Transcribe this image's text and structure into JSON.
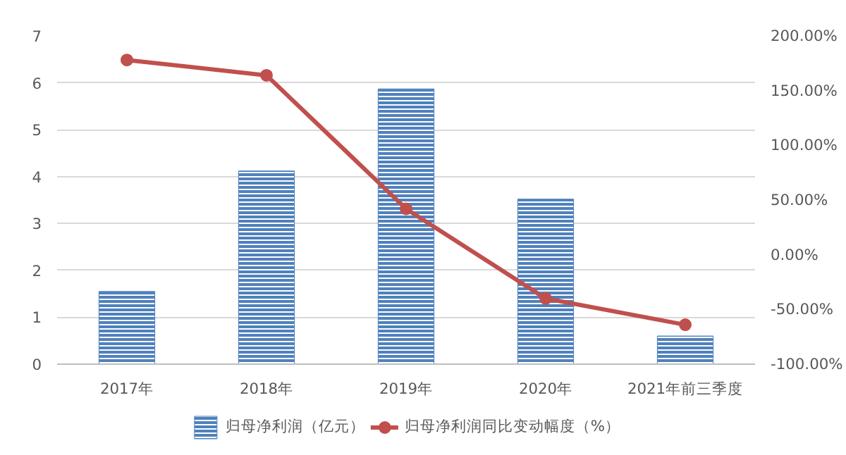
{
  "chart_data": {
    "type": "bar",
    "categories": [
      "2017年",
      "2018年",
      "2019年",
      "2020年",
      "2021年前三季度"
    ],
    "series": [
      {
        "name": "归母净利润（亿元）",
        "color": "#4f81bd",
        "values": [
          1.55,
          4.12,
          5.87,
          3.52,
          0.6
        ]
      },
      {
        "name": "归母净利润同比变动幅度（%）",
        "type": "line",
        "axis": "y2",
        "color": "#c0504d",
        "marker": "circle",
        "values": [
          178,
          164,
          42,
          -40,
          -64
        ]
      }
    ],
    "ylim": [
      0,
      7
    ],
    "yticks": [
      0,
      1,
      2,
      3,
      4,
      5,
      6,
      7
    ],
    "y2lim": [
      -100,
      200
    ],
    "y2ticks": [
      {
        "value": -100,
        "label": "-100.00%"
      },
      {
        "value": -50,
        "label": "-50.00%"
      },
      {
        "value": 0,
        "label": "0.00%"
      },
      {
        "value": 50,
        "label": "50.00%"
      },
      {
        "value": 100,
        "label": "100.00%"
      },
      {
        "value": 150,
        "label": "150.00%"
      },
      {
        "value": 200,
        "label": "200.00%"
      }
    ],
    "grid": "y",
    "legend": "bottom"
  }
}
